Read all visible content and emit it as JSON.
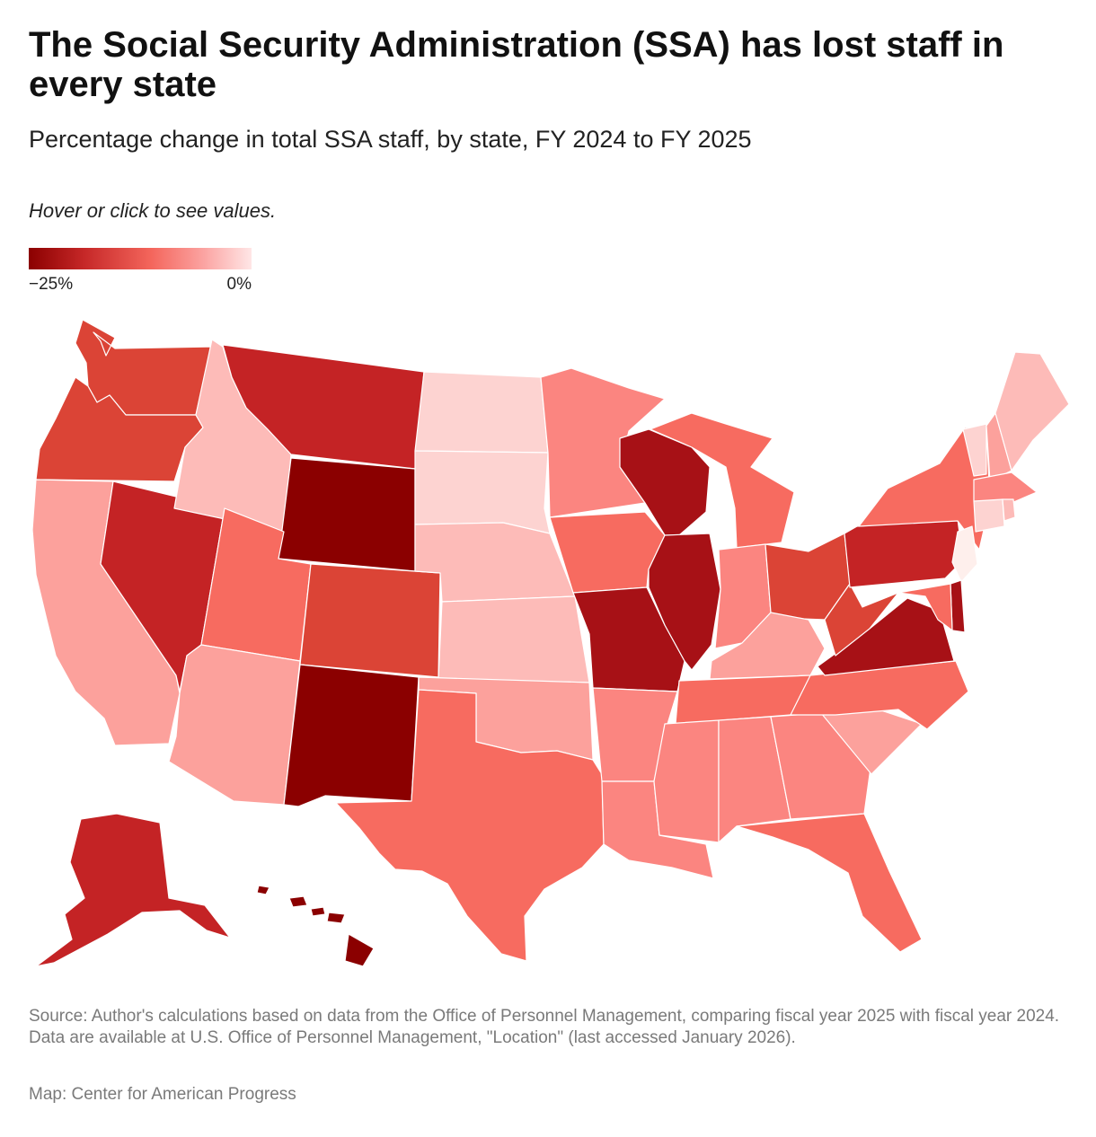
{
  "title": "The Social Security Administration (SSA) has lost staff in every state",
  "subtitle": "Percentage change in total SSA staff, by state, FY 2024 to FY 2025",
  "note": "Hover or click to see values.",
  "legend": {
    "min_label": "−25%",
    "max_label": "0%",
    "color_stops": [
      "#8b0000",
      "#c62828",
      "#f4665c",
      "#fba2a0",
      "#ffe6e6"
    ]
  },
  "source": "Source: Author's calculations based on data from the Office of Personnel Management, comparing fiscal year 2025 with fiscal year 2024. Data are available at U.S. Office of Personnel Management, \"Location\" (last accessed January 2026).",
  "credit": "Map: Center for American Progress",
  "palette": {
    "d1": "#8b0000",
    "d2": "#a71116",
    "d3": "#c42325",
    "d4": "#db4436",
    "d5": "#f76b60",
    "d6": "#fb8580",
    "d7": "#fca19c",
    "d8": "#fdbbb8",
    "d9": "#fdd3d1",
    "d10": "#feefec"
  },
  "states": [
    {
      "id": "WA",
      "shade": "d4"
    },
    {
      "id": "OR",
      "shade": "d4"
    },
    {
      "id": "CA",
      "shade": "d7"
    },
    {
      "id": "NV",
      "shade": "d3"
    },
    {
      "id": "ID",
      "shade": "d8"
    },
    {
      "id": "MT",
      "shade": "d3"
    },
    {
      "id": "WY",
      "shade": "d1"
    },
    {
      "id": "UT",
      "shade": "d5"
    },
    {
      "id": "AZ",
      "shade": "d7"
    },
    {
      "id": "CO",
      "shade": "d4"
    },
    {
      "id": "NM",
      "shade": "d1"
    },
    {
      "id": "ND",
      "shade": "d9"
    },
    {
      "id": "SD",
      "shade": "d9"
    },
    {
      "id": "NE",
      "shade": "d8"
    },
    {
      "id": "KS",
      "shade": "d8"
    },
    {
      "id": "OK",
      "shade": "d7"
    },
    {
      "id": "TX",
      "shade": "d5"
    },
    {
      "id": "MN",
      "shade": "d6"
    },
    {
      "id": "IA",
      "shade": "d5"
    },
    {
      "id": "MO",
      "shade": "d2"
    },
    {
      "id": "AR",
      "shade": "d6"
    },
    {
      "id": "LA",
      "shade": "d6"
    },
    {
      "id": "WI",
      "shade": "d2"
    },
    {
      "id": "IL",
      "shade": "d2"
    },
    {
      "id": "MI",
      "shade": "d5"
    },
    {
      "id": "IN",
      "shade": "d6"
    },
    {
      "id": "OH",
      "shade": "d4"
    },
    {
      "id": "KY",
      "shade": "d7"
    },
    {
      "id": "TN",
      "shade": "d5"
    },
    {
      "id": "MS",
      "shade": "d6"
    },
    {
      "id": "AL",
      "shade": "d6"
    },
    {
      "id": "GA",
      "shade": "d6"
    },
    {
      "id": "FL",
      "shade": "d5"
    },
    {
      "id": "SC",
      "shade": "d7"
    },
    {
      "id": "NC",
      "shade": "d5"
    },
    {
      "id": "VA",
      "shade": "d2"
    },
    {
      "id": "WV",
      "shade": "d4"
    },
    {
      "id": "PA",
      "shade": "d3"
    },
    {
      "id": "NY",
      "shade": "d5"
    },
    {
      "id": "VT",
      "shade": "d9"
    },
    {
      "id": "NH",
      "shade": "d7"
    },
    {
      "id": "ME",
      "shade": "d8"
    },
    {
      "id": "MA",
      "shade": "d6"
    },
    {
      "id": "CT",
      "shade": "d9"
    },
    {
      "id": "RI",
      "shade": "d8"
    },
    {
      "id": "NJ",
      "shade": "d10"
    },
    {
      "id": "DE",
      "shade": "d2"
    },
    {
      "id": "MD",
      "shade": "d5"
    },
    {
      "id": "AK",
      "shade": "d3"
    },
    {
      "id": "HI",
      "shade": "d1"
    }
  ]
}
